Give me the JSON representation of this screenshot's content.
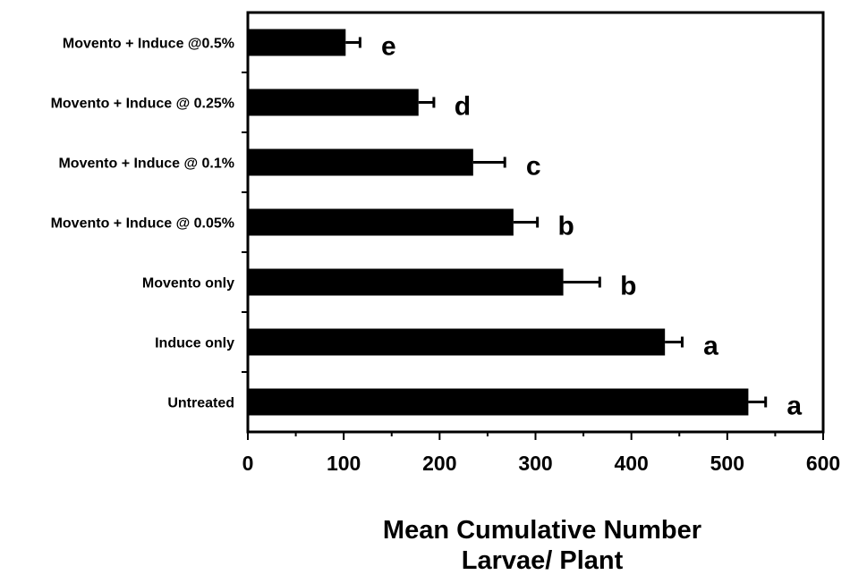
{
  "chart_data": {
    "type": "bar",
    "orientation": "horizontal",
    "categories": [
      "Movento + Induce @0.5%",
      "Movento + Induce @ 0.25%",
      "Movento + Induce @ 0.1%",
      "Movento + Induce @ 0.05%",
      "Movento only",
      "Induce only",
      "Untreated"
    ],
    "values": [
      102,
      178,
      235,
      277,
      329,
      435,
      522
    ],
    "errors": [
      15,
      16,
      33,
      25,
      38,
      18,
      18
    ],
    "significance_letters": [
      "e",
      "d",
      "c",
      "b",
      "b",
      "a",
      "a"
    ],
    "xlabel_lines": [
      "Mean Cumulative Number",
      "Larvae/ Plant"
    ],
    "xlim": [
      0,
      600
    ],
    "xticks": [
      "0",
      "100",
      "200",
      "300",
      "400",
      "500",
      "600"
    ],
    "bar_color": "#000000",
    "grid": false
  }
}
